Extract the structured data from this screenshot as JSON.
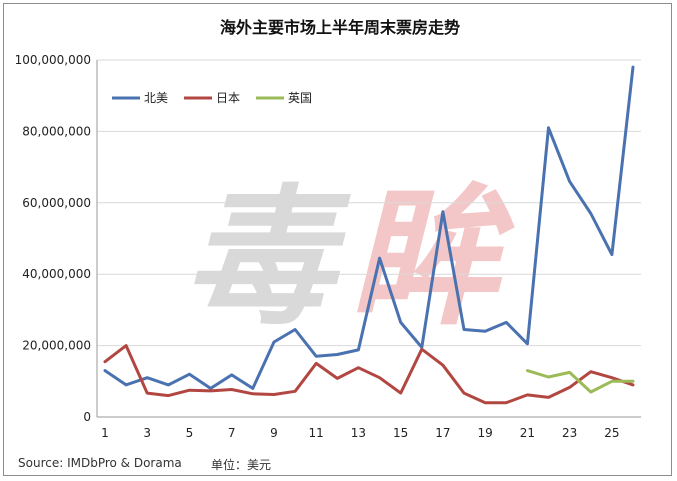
{
  "chart_data": {
    "type": "line",
    "title": "海外主要市场上半年周末票房走势",
    "x": [
      1,
      2,
      3,
      4,
      5,
      6,
      7,
      8,
      9,
      10,
      11,
      12,
      13,
      14,
      15,
      16,
      17,
      18,
      19,
      20,
      21,
      22,
      23,
      24,
      25,
      26
    ],
    "xticks": [
      "1",
      "3",
      "5",
      "7",
      "9",
      "11",
      "13",
      "15",
      "17",
      "19",
      "21",
      "23",
      "25"
    ],
    "yticks": [
      "0",
      "20,000,000",
      "40,000,000",
      "60,000,000",
      "80,000,000",
      "100,000,000"
    ],
    "ylim": [
      0,
      100000000
    ],
    "grid": "horizontal",
    "legend_position": "top-left",
    "series": [
      {
        "name": "北美",
        "color": "#4a72b0",
        "values": [
          13000000,
          9000000,
          11000000,
          9000000,
          12000000,
          8000000,
          11800000,
          8000000,
          21000000,
          24500000,
          17000000,
          17500000,
          18800000,
          44500000,
          26500000,
          19500000,
          57500000,
          24500000,
          24000000,
          26500000,
          20500000,
          81000000,
          66000000,
          57000000,
          45500000,
          98000000
        ]
      },
      {
        "name": "日本",
        "color": "#b24742",
        "values": [
          15500000,
          20000000,
          6700000,
          6000000,
          7500000,
          7300000,
          7700000,
          6500000,
          6300000,
          7200000,
          15000000,
          10800000,
          13800000,
          11000000,
          6700000,
          19000000,
          14500000,
          6700000,
          4000000,
          4000000,
          6200000,
          5500000,
          8300000,
          12700000,
          11000000,
          9000000
        ]
      },
      {
        "name": "英国",
        "color": "#9bbb59",
        "values": [
          null,
          null,
          null,
          null,
          null,
          null,
          null,
          null,
          null,
          null,
          null,
          null,
          null,
          null,
          null,
          null,
          null,
          null,
          null,
          null,
          13000000,
          11200000,
          12500000,
          7000000,
          10000000,
          10000000
        ]
      }
    ]
  },
  "footer": {
    "source": "Source:  IMDbPro & Dorama",
    "unit": "单位：美元"
  },
  "watermark": {
    "text": "毒眸",
    "color_main": "#d9d9d9",
    "color_accent": "#f3c7c7"
  }
}
